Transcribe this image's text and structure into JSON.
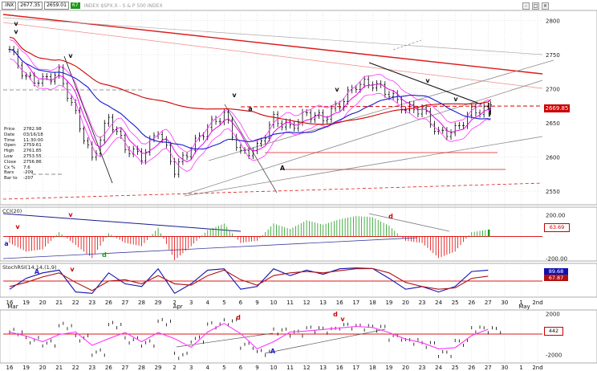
{
  "header": {
    "symbol_box": ".INX",
    "price_text": "2677.35",
    "extra_text": "2659.01",
    "flag": "67",
    "title": "INDEX $SPX.X - S & P 500 INDEX"
  },
  "price_panel": {
    "y_ticks": [
      "2800",
      "2750",
      "2700",
      "2650",
      "2600",
      "2550"
    ],
    "last_value_tag": "2669.85",
    "info_box": {
      "lines": [
        {
          "label": "Price",
          "value": "2782.98"
        },
        {
          "label": "Date",
          "value": "03/16/18"
        },
        {
          "label": "Time",
          "value": "11:30:00"
        },
        {
          "label": "Open",
          "value": "2759.61"
        },
        {
          "label": "High",
          "value": "2761.85"
        },
        {
          "label": "Low",
          "value": "2753.55"
        },
        {
          "label": "Close",
          "value": "2756.86"
        },
        {
          "label": "Cx %",
          "value": "7.6"
        },
        {
          "label": "Bars",
          "value": "-209"
        },
        {
          "label": "Bar to",
          "value": "-207"
        }
      ]
    }
  },
  "cci_panel": {
    "title": "CCI(20)",
    "y_ticks": [
      "200.00",
      "-200.00"
    ],
    "value_tag": "63.69"
  },
  "stoch_panel": {
    "title": "StochRSI(14,14,(1,9)",
    "value_tags": [
      "89.68",
      "67.87"
    ]
  },
  "bottom_panel": {
    "y_ticks": [
      "2000",
      "-2000"
    ],
    "value_tag": "442"
  },
  "annotations": [
    "v",
    "v",
    "v",
    "v",
    "a",
    "v",
    "v",
    "v",
    "A",
    "v",
    "d",
    "v",
    "a",
    "A",
    "d",
    "d",
    "v",
    "d",
    "v",
    "A"
  ],
  "x_axis": {
    "labels": [
      "16",
      "19",
      "20",
      "21",
      "22",
      "23",
      "26",
      "27",
      "28",
      "29",
      "2",
      "3",
      "4",
      "5",
      "6",
      "9",
      "10",
      "11",
      "12",
      "13",
      "16",
      "17",
      "18",
      "19",
      "20",
      "23",
      "24",
      "25",
      "26",
      "27",
      "30",
      "1",
      "2nd"
    ],
    "month_labels": [
      "Mar",
      "Apr",
      "May"
    ]
  },
  "colors": {
    "background": "#ffffff",
    "grid": "#d8d8d8",
    "candle": "#000000",
    "ma_blue": "#1a1ad0",
    "ma_red": "#cc0000",
    "envelope_magenta": "#ff33ff",
    "ma_short": "#ee00ee",
    "cci_up": "#1a9a1a",
    "cci_down": "#dd0000",
    "trend_red": "#dd1a1a",
    "trend_gray": "#888888",
    "stoch_blue": "#1010b0",
    "stoch_red": "#b01010",
    "accent_tag": "#cc0000"
  },
  "chart_data": {
    "type": "line",
    "title": "INDEX $SPX.X - S & P 500 INDEX",
    "xlabel": "",
    "ylabel": "",
    "ylim": [
      2530,
      2815
    ],
    "grid": true,
    "x": [
      "Mar 16",
      "Mar 19",
      "Mar 20",
      "Mar 21",
      "Mar 22",
      "Mar 23",
      "Mar 26",
      "Mar 27",
      "Mar 28",
      "Mar 29",
      "Apr 2",
      "Apr 3",
      "Apr 4",
      "Apr 5",
      "Apr 6",
      "Apr 9",
      "Apr 10",
      "Apr 11",
      "Apr 12",
      "Apr 13",
      "Apr 16",
      "Apr 17",
      "Apr 18",
      "Apr 19",
      "Apr 20",
      "Apr 23",
      "Apr 24",
      "Apr 25",
      "Apr 26",
      "Apr 27"
    ],
    "series": [
      {
        "name": "Price",
        "values": [
          2758,
          2715,
          2712,
          2724,
          2662,
          2596,
          2658,
          2614,
          2600,
          2640,
          2581,
          2614,
          2644,
          2663,
          2604,
          2613,
          2656,
          2643,
          2664,
          2656,
          2678,
          2706,
          2708,
          2693,
          2670,
          2670,
          2634,
          2639,
          2667,
          2670
        ]
      }
    ],
    "cci": [
      -60,
      -140,
      -120,
      40,
      -80,
      -200,
      30,
      -60,
      -90,
      80,
      -220,
      -90,
      60,
      120,
      -60,
      -40,
      120,
      70,
      150,
      110,
      160,
      190,
      180,
      100,
      -40,
      -60,
      -200,
      -140,
      40,
      64
    ],
    "stoch_fast": [
      20,
      60,
      80,
      90,
      10,
      5,
      80,
      40,
      30,
      95,
      5,
      40,
      90,
      95,
      20,
      30,
      95,
      70,
      90,
      75,
      95,
      98,
      96,
      60,
      20,
      30,
      10,
      30,
      85,
      90
    ],
    "stoch_slow": [
      30,
      45,
      65,
      80,
      45,
      15,
      50,
      55,
      40,
      70,
      40,
      35,
      70,
      90,
      55,
      35,
      70,
      80,
      85,
      80,
      88,
      95,
      96,
      80,
      45,
      30,
      20,
      25,
      60,
      68
    ],
    "bottom_osc": [
      200,
      -600,
      -900,
      800,
      -400,
      -1800,
      900,
      -600,
      -900,
      1200,
      -2100,
      -500,
      900,
      1200,
      -1100,
      -1800,
      300,
      100,
      500,
      400,
      800,
      700,
      600,
      -300,
      -700,
      -1000,
      -1900,
      -800,
      500,
      442
    ]
  }
}
